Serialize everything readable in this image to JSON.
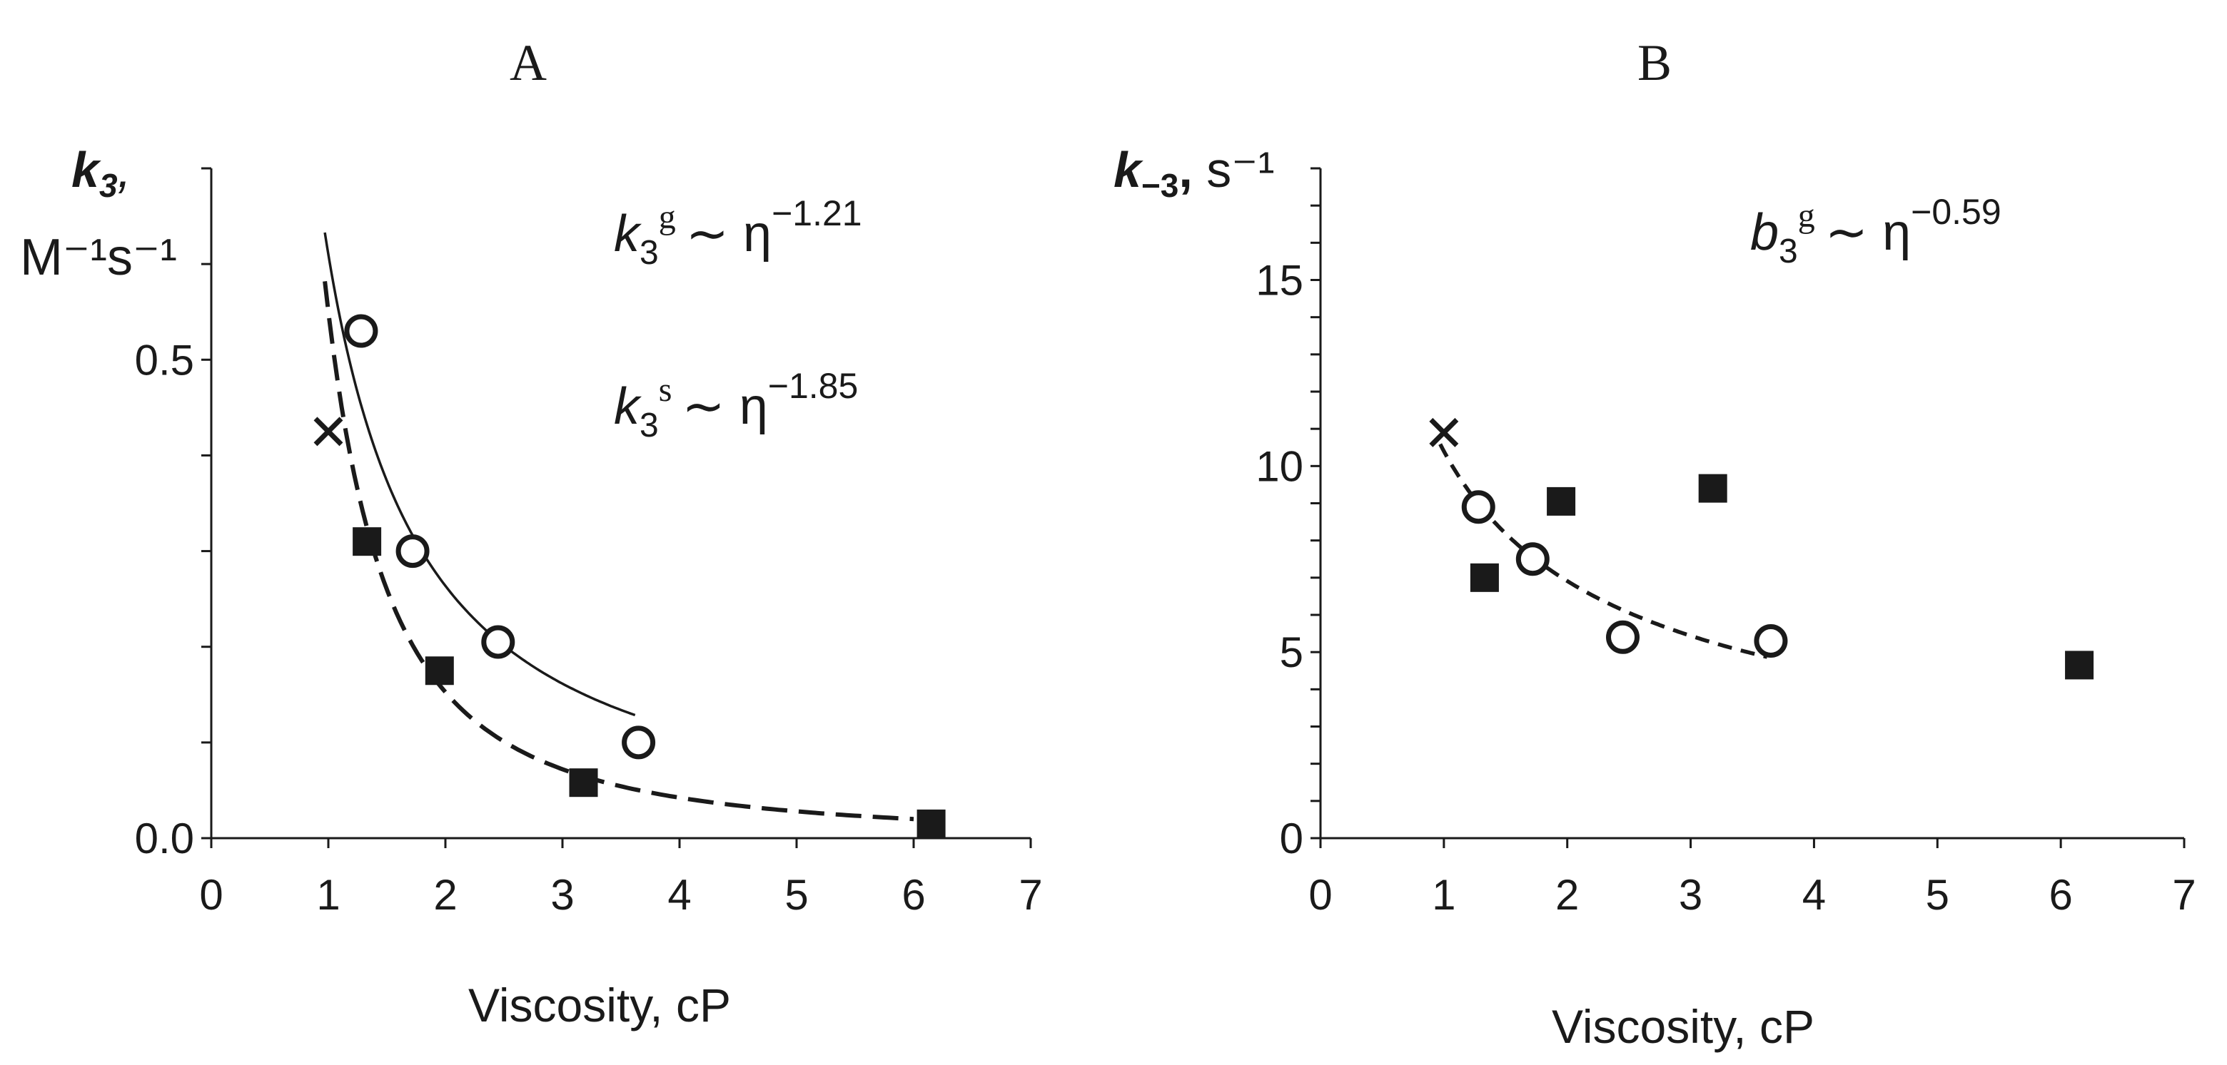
{
  "chart_data": [
    {
      "panel_label": "A",
      "type": "scatter",
      "title": "A",
      "xlabel": "Viscosity, cP",
      "ylabel_symbol": "k",
      "ylabel_sub": "3",
      "ylabel_punct": ",",
      "ylabel_units": "M⁻¹s⁻¹",
      "xlim": [
        0,
        7
      ],
      "ylim": [
        0,
        0.7
      ],
      "x_ticks": [
        0,
        1,
        2,
        3,
        4,
        5,
        6,
        7
      ],
      "x_tick_labels": [
        "0",
        "1",
        "2",
        "3",
        "4",
        "5",
        "6",
        "7"
      ],
      "y_ticks": [
        0,
        0.1,
        0.2,
        0.3,
        0.4,
        0.5,
        0.6,
        0.7
      ],
      "y_tick_labels": [
        {
          "value": 0.0,
          "label": "0.0"
        },
        {
          "value": 0.5,
          "label": "0.5"
        }
      ],
      "grid": false,
      "series": [
        {
          "name": "cross",
          "marker": "x",
          "points": [
            [
              1.0,
              0.425
            ]
          ]
        },
        {
          "name": "open circles",
          "marker": "circle-open",
          "points": [
            [
              1.28,
              0.53
            ],
            [
              1.72,
              0.3
            ],
            [
              2.45,
              0.205
            ],
            [
              3.65,
              0.1
            ]
          ]
        },
        {
          "name": "filled squares",
          "marker": "square-filled",
          "points": [
            [
              1.33,
              0.31
            ],
            [
              1.95,
              0.175
            ],
            [
              3.18,
              0.058
            ],
            [
              6.15,
              0.015
            ]
          ]
        }
      ],
      "fits": [
        {
          "name": "k3g",
          "style": "solid",
          "exponent": -1.21,
          "a": 0.61,
          "x_range": [
            0.97,
            3.62
          ]
        },
        {
          "name": "k3s",
          "style": "long-dash",
          "exponent": -1.85,
          "a": 0.55,
          "x_range": [
            0.97,
            6.0
          ]
        }
      ],
      "annotations": [
        {
          "sym": "k",
          "sub": "3",
          "sup": "g",
          "rest": "∼ η",
          "exp": "−1.21"
        },
        {
          "sym": "k",
          "sub": "3",
          "sup": "s",
          "rest": "∼ η",
          "exp": "−1.85"
        }
      ]
    },
    {
      "panel_label": "B",
      "type": "scatter",
      "title": "B",
      "xlabel": "Viscosity, cP",
      "ylabel_symbol": "k",
      "ylabel_sub": "−3",
      "ylabel_punct": ",",
      "ylabel_units": " s⁻¹",
      "xlim": [
        0,
        7
      ],
      "ylim": [
        0,
        18
      ],
      "x_ticks": [
        0,
        1,
        2,
        3,
        4,
        5,
        6,
        7
      ],
      "x_tick_labels": [
        "0",
        "1",
        "2",
        "3",
        "4",
        "5",
        "6",
        "7"
      ],
      "y_ticks": [
        0,
        1,
        2,
        3,
        4,
        5,
        6,
        7,
        8,
        9,
        10,
        11,
        12,
        13,
        14,
        15,
        16,
        17,
        18
      ],
      "y_tick_labels": [
        {
          "value": 0,
          "label": "0"
        },
        {
          "value": 5,
          "label": "5"
        },
        {
          "value": 10,
          "label": "10"
        },
        {
          "value": 15,
          "label": "15"
        }
      ],
      "grid": false,
      "series": [
        {
          "name": "cross",
          "marker": "x",
          "points": [
            [
              1.0,
              10.9
            ]
          ]
        },
        {
          "name": "open circles",
          "marker": "circle-open",
          "points": [
            [
              1.28,
              8.9
            ],
            [
              1.72,
              7.5
            ],
            [
              2.45,
              5.4
            ],
            [
              3.65,
              5.3
            ]
          ]
        },
        {
          "name": "filled squares",
          "marker": "square-filled",
          "points": [
            [
              1.33,
              7.0
            ],
            [
              1.95,
              9.05
            ],
            [
              3.18,
              9.4
            ],
            [
              6.15,
              4.65
            ]
          ]
        }
      ],
      "fits": [
        {
          "name": "b3g",
          "style": "short-dash",
          "exponent": -0.59,
          "a": 10.4,
          "x_range": [
            0.97,
            3.62
          ]
        }
      ],
      "annotations": [
        {
          "sym": "b",
          "sub": "3",
          "sup": "g",
          "rest": "∼ η",
          "exp": "−0.59"
        }
      ]
    }
  ]
}
